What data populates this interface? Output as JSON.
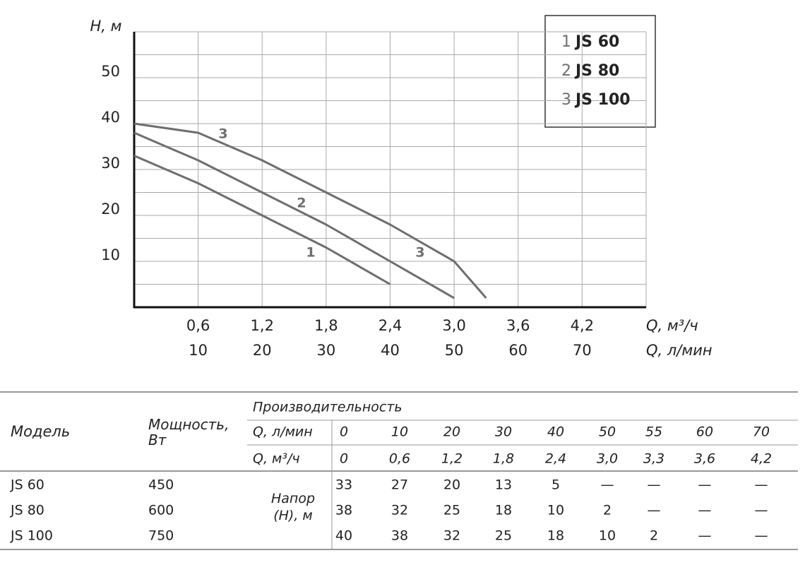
{
  "chart_data": {
    "type": "line",
    "ylabel": "H, м",
    "xlabel": "Q, л/мин",
    "x2label": "Q, м³/ч",
    "x": [
      0,
      10,
      20,
      30,
      40,
      50,
      55
    ],
    "series": [
      {
        "number": "1",
        "name": "JS 60",
        "color": "#6e6e6e",
        "values": [
          33,
          27,
          20,
          13,
          5,
          null,
          null
        ]
      },
      {
        "number": "2",
        "name": "JS 80",
        "color": "#6e6e6e",
        "values": [
          38,
          32,
          25,
          18,
          10,
          2,
          null
        ]
      },
      {
        "number": "3",
        "name": "JS 100",
        "color": "#6e6e6e",
        "values": [
          40,
          38,
          32,
          25,
          18,
          10,
          2
        ]
      }
    ],
    "xlim": [
      0,
      80
    ],
    "xticks": [
      10,
      20,
      30,
      40,
      50,
      60,
      70
    ],
    "x2lim": [
      0,
      4.8
    ],
    "x2ticks": [
      {
        "value": 0.6,
        "label": "0,6"
      },
      {
        "value": 1.2,
        "label": "1,2"
      },
      {
        "value": 1.8,
        "label": "1,8"
      },
      {
        "value": 2.4,
        "label": "2,4"
      },
      {
        "value": 3.0,
        "label": "3,0"
      },
      {
        "value": 3.6,
        "label": "3,6"
      },
      {
        "value": 4.2,
        "label": "4,2"
      }
    ],
    "ylim": [
      0,
      60
    ],
    "yticks": [
      10,
      20,
      30,
      40,
      50
    ],
    "yminorticks": [
      5,
      15,
      25,
      35,
      45,
      55
    ],
    "grid": true,
    "legend": "top-right"
  },
  "table": {
    "model_header": "Модель",
    "power_header": "Мощность, Вт",
    "perf_header": "Производительность",
    "q_lmin_label": "Q, л/мин",
    "q_m3h_label": "Q, м³/ч",
    "q_lmin": [
      "0",
      "10",
      "20",
      "30",
      "40",
      "50",
      "55",
      "60",
      "70"
    ],
    "q_m3h": [
      "0",
      "0,6",
      "1,2",
      "1,8",
      "2,4",
      "3,0",
      "3,3",
      "3,6",
      "4,2"
    ],
    "head_label": "Напор (Н), м",
    "rows": [
      {
        "model": "JS 60",
        "power": "450",
        "head": [
          "33",
          "27",
          "20",
          "13",
          "5",
          "—",
          "—",
          "—",
          "—"
        ]
      },
      {
        "model": "JS 80",
        "power": "600",
        "head": [
          "38",
          "32",
          "25",
          "18",
          "10",
          "2",
          "—",
          "—",
          "—"
        ]
      },
      {
        "model": "JS 100",
        "power": "750",
        "head": [
          "40",
          "38",
          "32",
          "25",
          "18",
          "10",
          "2",
          "—",
          "—"
        ]
      }
    ]
  }
}
